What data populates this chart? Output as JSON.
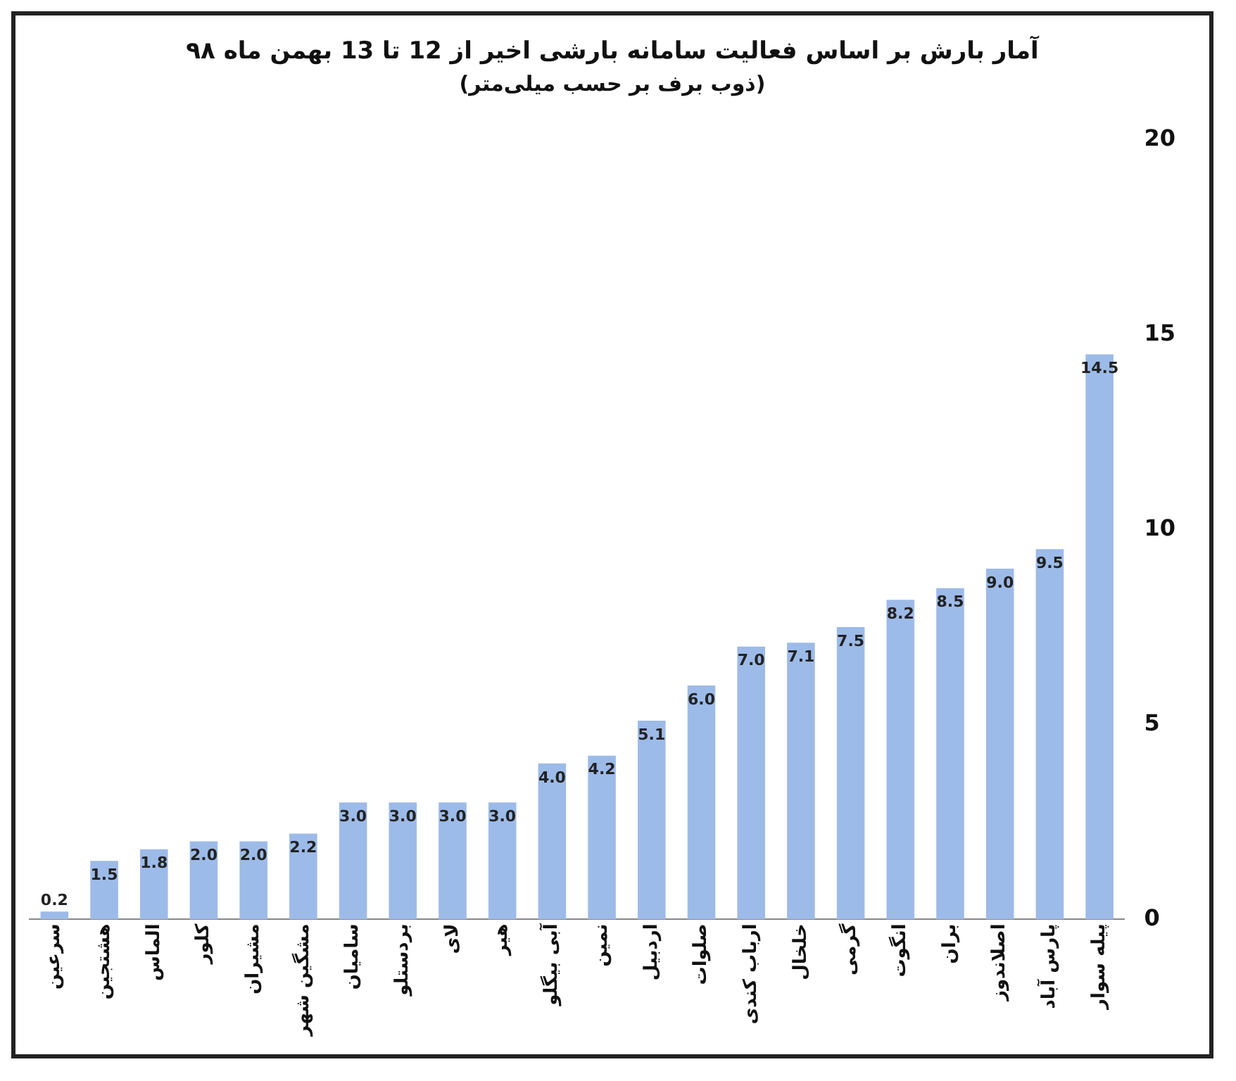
{
  "chart_data": {
    "type": "bar",
    "title": "آمار بارش بر اساس فعالیت سامانه بارشی اخیر از 12 تا 13 بهمن ماه ۹۸",
    "subtitle": "(ذوب برف بر حسب میلی‌متر)",
    "categories": [
      "سرعین",
      "هشتجین",
      "الماس",
      "کلور",
      "مشیران",
      "مشگین شهر",
      "سامیان",
      "بردستلو",
      "لای",
      "هیر",
      "آبی بیگلو",
      "نمین",
      "اردبیل",
      "صلوات",
      "ارباب کندی",
      "خلخال",
      "گرمی",
      "انگوت",
      "بران",
      "اصلاندوز",
      "پارس آباد",
      "پیله سوار"
    ],
    "values": [
      0.2,
      1.5,
      1.8,
      2.0,
      2.0,
      2.2,
      3.0,
      3.0,
      3.0,
      3.0,
      4.0,
      4.2,
      5.1,
      6.0,
      7.0,
      7.1,
      7.5,
      8.2,
      8.5,
      9.0,
      9.5,
      14.5
    ],
    "color": "#9dbbe8",
    "ylim": [
      0,
      20
    ],
    "yticks": [
      0,
      5,
      10,
      15,
      20
    ],
    "value_labels": [
      "0.2",
      "1.5",
      "1.8",
      "2.0",
      "2.0",
      "2.2",
      "3.0",
      "3.0",
      "3.0",
      "3.0",
      "4.0",
      "4.2",
      "5.1",
      "6.0",
      "7.0",
      "7.1",
      "7.5",
      "8.2",
      "8.5",
      "9.0",
      "9.5",
      "14.5"
    ],
    "grid": false,
    "legend": false
  }
}
